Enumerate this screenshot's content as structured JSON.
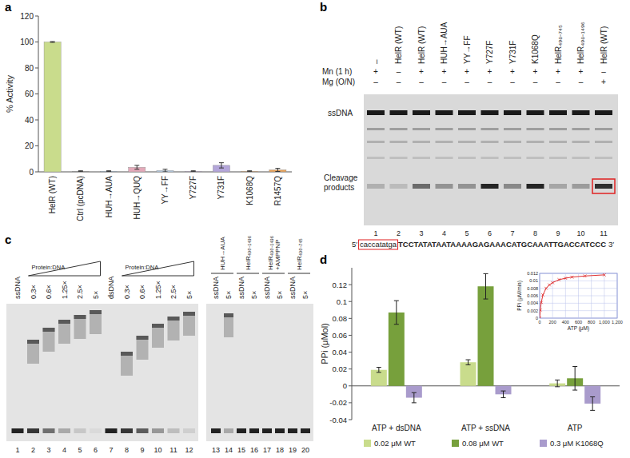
{
  "panel_labels": [
    "a",
    "b",
    "c",
    "d"
  ],
  "chart_data": [
    {
      "type": "bar",
      "ylabel": "% Activity",
      "categories": [
        "HelR (WT)",
        "Ctrl (pcDNA)",
        "HUH→AUA",
        "HUH→QUQ",
        "YY→FF",
        "Y727F",
        "Y731F",
        "K1068Q",
        "R1457Q"
      ],
      "values": [
        100,
        0.5,
        0.5,
        3.5,
        1,
        0.5,
        5,
        0.5,
        1.5
      ],
      "errors": [
        0.3,
        0.3,
        0.3,
        1.5,
        1,
        0.3,
        2,
        0.3,
        1.2
      ],
      "colors": [
        "#c9dc8c",
        "#a0a0a0",
        "#a8c4e0",
        "#e3a9b9",
        "#b3cbe3",
        "#c9b0d6",
        "#b4a6da",
        "#f0b070",
        "#e8a35a"
      ],
      "ylim": [
        0,
        120
      ],
      "yticks": [
        0,
        20,
        40,
        60,
        80,
        100,
        120
      ]
    },
    {
      "type": "bar",
      "ylabel": "PPi (μMol)",
      "categories": [
        "ATP + dsDNA",
        "ATP + ssDNA",
        "ATP"
      ],
      "series": [
        {
          "name": "0.02 μM WT",
          "color": "#c9dc8c",
          "values": [
            0.019,
            0.028,
            0.003
          ],
          "errors": [
            0.003,
            0.003,
            0.004
          ]
        },
        {
          "name": "0.08 μM WT",
          "color": "#77a03c",
          "values": [
            0.087,
            0.118,
            0.009
          ],
          "errors": [
            0.014,
            0.015,
            0.014
          ]
        },
        {
          "name": "0.3 μM K1068Q",
          "color": "#a99bcc",
          "values": [
            -0.014,
            -0.01,
            -0.021
          ],
          "errors": [
            0.006,
            0.004,
            0.008
          ]
        }
      ],
      "ylim": [
        -0.04,
        0.14
      ],
      "yticks": [
        -0.04,
        -0.02,
        0,
        0.02,
        0.04,
        0.06,
        0.08,
        0.1,
        0.12
      ],
      "legend": "bottom"
    },
    {
      "type": "line",
      "xlabel": "ATP (μM)",
      "ylabel": "PPi (μM/min)",
      "x": [
        0,
        10,
        25,
        50,
        100,
        150,
        200,
        300,
        400,
        500,
        700,
        1000
      ],
      "values": [
        0,
        0.0022,
        0.0042,
        0.0062,
        0.008,
        0.0089,
        0.0095,
        0.0103,
        0.0107,
        0.011,
        0.0113,
        0.0116
      ],
      "color": "#e03030",
      "marker": "x",
      "line_style": "solid",
      "grid": true,
      "xlim": [
        0,
        1200
      ],
      "xticks": [
        0,
        200,
        400,
        600,
        800,
        {
          "value": 1000,
          "label": "1,000"
        },
        {
          "value": 1200,
          "label": "1,200"
        }
      ],
      "ylim": [
        0,
        0.012
      ],
      "yticks": [
        0,
        0.002,
        0.004,
        0.006,
        0.008,
        0.01,
        0.012
      ]
    }
  ],
  "gel_b": {
    "lane_labels": [
      "–",
      "HelR (WT)",
      "HelR (WT)",
      "HUH→AUA",
      "YY→FF",
      "Y727F",
      "Y731F",
      "K1068Q",
      "HelR₄₉₀₋₇₄₅",
      "HelR₄₉₀₋₁₄₉₆",
      "HelR (WT)"
    ],
    "conditions": [
      {
        "label": "Mn (1 h)",
        "marks": [
          "+",
          "–",
          "+",
          "+",
          "+",
          "+",
          "+",
          "+",
          "+",
          "+",
          "–"
        ]
      },
      {
        "label": "Mg (O/N)",
        "marks": [
          "–",
          "–",
          "–",
          "–",
          "–",
          "–",
          "–",
          "–",
          "–",
          "–",
          "+"
        ]
      }
    ],
    "band_labels": [
      "ssDNA",
      "Cleavage products"
    ],
    "lane_numbers": [
      1,
      2,
      3,
      4,
      5,
      6,
      7,
      8,
      9,
      10,
      11
    ],
    "sequence": {
      "prefix": "5′",
      "boxed": "caccatatga",
      "rest": "TCCTATATAATAAAAGAGAAACATGCAAATTGACCATCCC",
      "suffix": "3′"
    }
  },
  "gel_c": {
    "lane_labels": [
      "ssDNA",
      "0.3×",
      "0.6×",
      "1.25×",
      "2.5×",
      "5×",
      "dsDNA",
      "0.3×",
      "0.6×",
      "1.25×",
      "2.5×",
      "5×",
      "ssDNA",
      "5×",
      "ssDNA",
      "5×",
      "ssDNA",
      "5×",
      "ssDNA",
      "5×"
    ],
    "ratio_label": "Protein:DNA",
    "groups": [
      [
        "HUH→AUA"
      ],
      [
        "HelR₄₉₀₋₁₄₉₆"
      ],
      [
        "HelR₄₉₀₋₁₄₉₆",
        "+AMPPNP"
      ],
      [
        "HelR₄₉₀₋₇₄₅"
      ]
    ],
    "lane_numbers": [
      1,
      2,
      3,
      4,
      5,
      6,
      7,
      8,
      9,
      10,
      11,
      12,
      13,
      14,
      15,
      16,
      17,
      18,
      19,
      20
    ]
  }
}
